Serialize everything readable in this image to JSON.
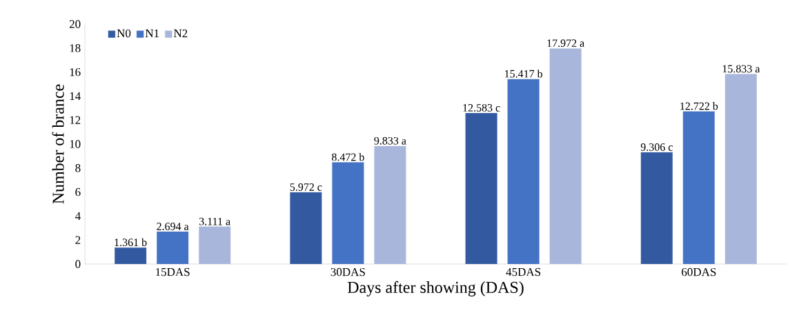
{
  "chart_data": {
    "type": "bar",
    "xlabel": "Days after showing (DAS)",
    "ylabel": "Number of brance",
    "categories": [
      "15DAS",
      "30DAS",
      "45DAS",
      "60DAS"
    ],
    "series": [
      {
        "name": "N0",
        "color": "#335aa1",
        "values": [
          1.361,
          5.972,
          12.583,
          9.306
        ],
        "value_labels": [
          "1.361 b",
          "5.972 c",
          "12.583 c",
          "9.306 c"
        ]
      },
      {
        "name": "N1",
        "color": "#4472c4",
        "values": [
          2.694,
          8.472,
          15.417,
          12.722
        ],
        "value_labels": [
          "2.694 a",
          "8.472 b",
          "15.417 b",
          "12.722 b"
        ]
      },
      {
        "name": "N2",
        "color": "#a9b6dc",
        "values": [
          3.111,
          9.833,
          17.972,
          15.833
        ],
        "value_labels": [
          "3.111 a",
          "9.833 a",
          "17.972 a",
          "15.833 a"
        ]
      }
    ],
    "ylim": [
      0,
      20
    ],
    "yticks": [
      0,
      2,
      4,
      6,
      8,
      10,
      12,
      14,
      16,
      18,
      20
    ],
    "legend": "top left"
  }
}
